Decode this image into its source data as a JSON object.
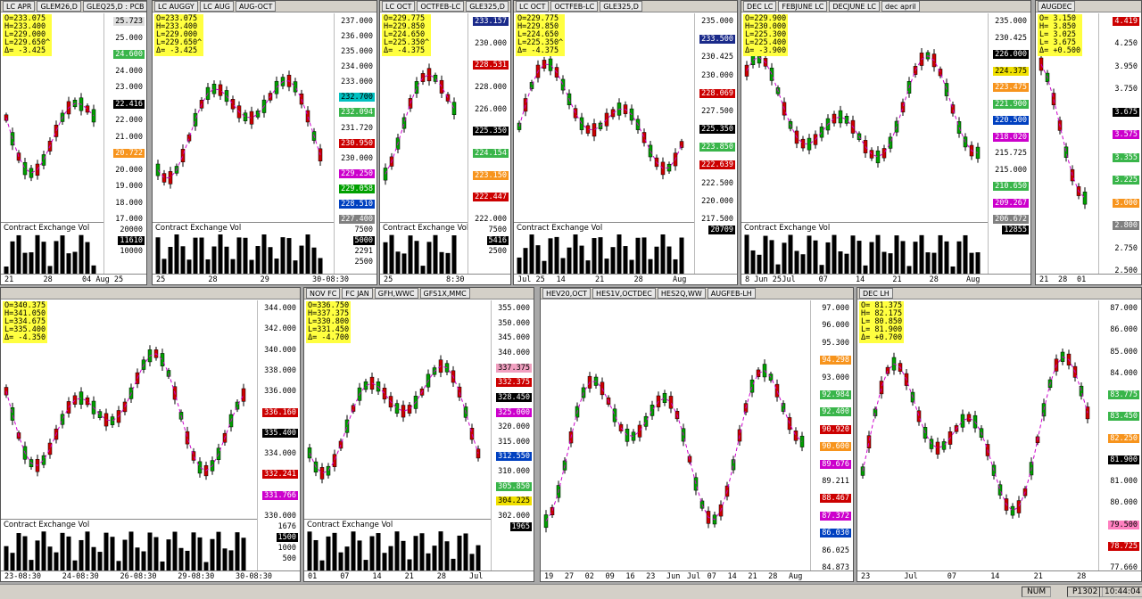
{
  "panels": [
    {
      "tabs": [
        "LC APR",
        "GLEM26,D",
        "GLEQ25,D : PCB"
      ],
      "ohlc": [
        "O=233.075",
        "H=233.400",
        "L=229.000",
        "L=229.650^",
        "Δ= -3.425"
      ],
      "axis": [
        {
          "text": "25.723",
          "bg": "#dddddd"
        },
        {
          "text": "25.000"
        },
        {
          "text": "24.600",
          "bg": "#39b54a"
        },
        {
          "text": "24.000"
        },
        {
          "text": "23.000"
        },
        {
          "text": "22.416",
          "bg": "#000000"
        },
        {
          "text": "22.000"
        },
        {
          "text": "21.000"
        },
        {
          "text": "20.722",
          "bg": "#f7941d"
        },
        {
          "text": "20.000"
        },
        {
          "text": "19.000"
        },
        {
          "text": "18.000"
        },
        {
          "text": "17.000"
        }
      ],
      "vol_axis": [
        "20000",
        "11610",
        "10000"
      ],
      "vol_label": "Contract Exchange Vol",
      "dates": [
        "21",
        "28",
        "04 Aug 25"
      ]
    },
    {
      "tabs": [
        "LC AUGGY",
        "LC AUG",
        "AUG-OCT"
      ],
      "ohlc": [
        "O=233.075",
        "H=233.400",
        "L=229.000",
        "L=229.650^",
        "Δ= -3.425"
      ],
      "axis": [
        {
          "text": "237.000"
        },
        {
          "text": "236.000"
        },
        {
          "text": "235.000"
        },
        {
          "text": "234.000"
        },
        {
          "text": "233.000"
        },
        {
          "text": "232.700",
          "bg": "#00c0c0"
        },
        {
          "text": "232.094",
          "bg": "#39b54a"
        },
        {
          "text": "231.720"
        },
        {
          "text": "230.950",
          "bg": "#cc0000"
        },
        {
          "text": "230.000"
        },
        {
          "text": "229.250",
          "bg": "#cc00cc"
        },
        {
          "text": "229.058",
          "bg": "#00a000"
        },
        {
          "text": "228.510",
          "bg": "#0040c0"
        },
        {
          "text": "227.400",
          "bg": "#808080"
        }
      ],
      "vol_axis": [
        "7500",
        "5000",
        "2291",
        "2500"
      ],
      "vol_label": "Contract Exchange Vol",
      "dates": [
        "25",
        "28",
        "29",
        "30-08:30"
      ]
    },
    {
      "tabs": [
        "LC OCT",
        "OCTFEB-LC",
        "GLE325,D"
      ],
      "ohlc": [
        "O=229.775",
        "H=229.850",
        "L=224.650",
        "L=225.350^",
        "Δ= -4.375"
      ],
      "axis": [
        {
          "text": "233.157",
          "bg": "#1a2a8a"
        },
        {
          "text": "230.000"
        },
        {
          "text": "228.531",
          "bg": "#cc0000"
        },
        {
          "text": "228.000"
        },
        {
          "text": "226.000"
        },
        {
          "text": "225.350",
          "bg": "#000000"
        },
        {
          "text": "224.154",
          "bg": "#39b54a"
        },
        {
          "text": "223.150",
          "bg": "#f7941d"
        },
        {
          "text": "222.447",
          "bg": "#cc0000"
        },
        {
          "text": "222.000"
        }
      ],
      "vol_axis": [
        "7500",
        "5416",
        "2500"
      ],
      "vol_label": "Contract Exchange Vol",
      "dates": [
        "25",
        "8:30"
      ]
    },
    {
      "tabs": [
        "LC OCT",
        "OCTFEB-LC",
        "GLE325,D"
      ],
      "ohlc": [
        "O=229.775",
        "H=229.850",
        "L=224.650",
        "L=225.350^",
        "Δ= -4.375"
      ],
      "axis": [
        {
          "text": "235.000"
        },
        {
          "text": "233.500",
          "bg": "#1a2a8a"
        },
        {
          "text": "230.425"
        },
        {
          "text": "230.000"
        },
        {
          "text": "228.069",
          "bg": "#cc0000"
        },
        {
          "text": "227.500"
        },
        {
          "text": "225.350",
          "bg": "#000000"
        },
        {
          "text": "223.850",
          "bg": "#39b54a"
        },
        {
          "text": "222.639",
          "bg": "#cc0000"
        },
        {
          "text": "222.500"
        },
        {
          "text": "220.000"
        },
        {
          "text": "217.500"
        }
      ],
      "vol_axis": [
        "20709"
      ],
      "vol_label": "Contract Exchange Vol",
      "dates": [
        "Jul 25",
        "14",
        "21",
        "28",
        "Aug"
      ]
    },
    {
      "tabs": [
        "DEC LC",
        "FEBJUNE LC",
        "DECJUNE LC",
        "dec april"
      ],
      "ohlc": [
        "O=229.900",
        "H=230.000",
        "L=225.300",
        "L=225.400",
        "Δ= -3.900"
      ],
      "axis": [
        {
          "text": "235.000"
        },
        {
          "text": "230.425"
        },
        {
          "text": "226.000",
          "bg": "#000000"
        },
        {
          "text": "224.375",
          "bg": "#f0e000"
        },
        {
          "text": "223.475",
          "bg": "#f7941d"
        },
        {
          "text": "221.900",
          "bg": "#39b54a"
        },
        {
          "text": "220.500",
          "bg": "#0040c0"
        },
        {
          "text": "218.020",
          "bg": "#cc00cc"
        },
        {
          "text": "215.725"
        },
        {
          "text": "215.000"
        },
        {
          "text": "210.650",
          "bg": "#39b54a"
        },
        {
          "text": "209.267",
          "bg": "#cc00cc"
        },
        {
          "text": "206.672",
          "bg": "#808080"
        }
      ],
      "vol_axis": [
        "12855"
      ],
      "vol_label": "Contract Exchange Vol",
      "dates": [
        "8 Jun 25",
        "Jul",
        "07",
        "14",
        "21",
        "28",
        "Aug"
      ]
    },
    {
      "tabs": [
        "AUGDEC"
      ],
      "ohlc": [
        "O= 3.150",
        "H= 3.850",
        "L= 3.025",
        "L= 3.675",
        "Δ= +0.500"
      ],
      "axis": [
        {
          "text": "4.419",
          "bg": "#cc0000"
        },
        {
          "text": "4.250"
        },
        {
          "text": "3.950"
        },
        {
          "text": "3.750"
        },
        {
          "text": "3.675",
          "bg": "#000000"
        },
        {
          "text": "3.575",
          "bg": "#cc00cc"
        },
        {
          "text": "3.355",
          "bg": "#39b54a"
        },
        {
          "text": "3.225",
          "bg": "#39b54a"
        },
        {
          "text": "3.000",
          "bg": "#f7941d"
        },
        {
          "text": "2.800",
          "bg": "#808080"
        },
        {
          "text": "2.750"
        },
        {
          "text": "2.500"
        }
      ],
      "vol_axis": [],
      "vol_label": "",
      "dates": [
        "21",
        "28",
        "01"
      ]
    },
    {
      "tabs": [],
      "ohlc": [
        "O=340.375",
        "H=341.050",
        "L=334.675",
        "L=335.400",
        "Δ= -4.350"
      ],
      "axis": [
        {
          "text": "344.000"
        },
        {
          "text": "342.000"
        },
        {
          "text": "340.000"
        },
        {
          "text": "338.000"
        },
        {
          "text": "336.000"
        },
        {
          "text": "336.160",
          "bg": "#cc0000"
        },
        {
          "text": "335.400",
          "bg": "#000000"
        },
        {
          "text": "334.000"
        },
        {
          "text": "332.241",
          "bg": "#cc0000"
        },
        {
          "text": "331.766",
          "bg": "#cc00cc"
        },
        {
          "text": "330.000"
        }
      ],
      "vol_axis": [
        "1676",
        "1500",
        "1000",
        "500"
      ],
      "vol_label": "Contract Exchange Vol",
      "dates": [
        "23-08:30",
        "24-08:30",
        "26-08:30",
        "29-08:30",
        "30-08:30"
      ]
    },
    {
      "tabs": [
        "NOV FC",
        "FC JAN",
        "GFH,WWC",
        "GFS1X,MMC"
      ],
      "ohlc": [
        "O=336.750",
        "H=337.375",
        "L=330.800",
        "L=331.450",
        "Δ= -4.700"
      ],
      "axis": [
        {
          "text": "355.000"
        },
        {
          "text": "350.000"
        },
        {
          "text": "345.000"
        },
        {
          "text": "340.000"
        },
        {
          "text": "337.375",
          "bg": "#f0a0c0"
        },
        {
          "text": "332.375",
          "bg": "#cc0000"
        },
        {
          "text": "328.450",
          "bg": "#000000"
        },
        {
          "text": "325.000",
          "bg": "#cc00cc"
        },
        {
          "text": "320.000"
        },
        {
          "text": "315.000"
        },
        {
          "text": "312.550",
          "bg": "#0040c0"
        },
        {
          "text": "310.000"
        },
        {
          "text": "305.850",
          "bg": "#39b54a"
        },
        {
          "text": "304.225",
          "bg": "#f0e000"
        },
        {
          "text": "302.000"
        }
      ],
      "vol_axis": [
        "1965"
      ],
      "vol_label": "Contract Exchange Vol",
      "dates": [
        "01",
        "07",
        "14",
        "21",
        "28",
        "Jul"
      ]
    },
    {
      "tabs": [
        "HEV20,OCT",
        "HES1V,OCTDEC",
        "HES2Q,WW",
        "AUGFEB-LH"
      ],
      "ohlc": [],
      "axis": [
        {
          "text": "97.000"
        },
        {
          "text": "96.000"
        },
        {
          "text": "95.300"
        },
        {
          "text": "94.298",
          "bg": "#f7941d"
        },
        {
          "text": "93.000"
        },
        {
          "text": "92.984",
          "bg": "#39b54a"
        },
        {
          "text": "92.400",
          "bg": "#39b54a"
        },
        {
          "text": "90.920",
          "bg": "#cc0000"
        },
        {
          "text": "90.600",
          "bg": "#f7941d"
        },
        {
          "text": "89.676",
          "bg": "#cc00cc"
        },
        {
          "text": "89.211"
        },
        {
          "text": "88.467",
          "bg": "#cc0000"
        },
        {
          "text": "87.372",
          "bg": "#cc00cc"
        },
        {
          "text": "86.030",
          "bg": "#0040c0"
        },
        {
          "text": "86.025"
        },
        {
          "text": "84.873"
        }
      ],
      "vol_axis": [],
      "vol_label": "",
      "dates": [
        "19",
        "27",
        "02",
        "09",
        "16",
        "23",
        "Jun",
        "Jul",
        "07",
        "14",
        "21",
        "28",
        "Aug"
      ]
    },
    {
      "tabs": [
        "DEC LH"
      ],
      "ohlc": [
        "O= 81.375",
        "H= 82.175",
        "L= 80.850",
        "L= 81.900",
        "Δ= +0.700"
      ],
      "axis": [
        {
          "text": "87.000"
        },
        {
          "text": "86.000"
        },
        {
          "text": "85.000"
        },
        {
          "text": "84.000"
        },
        {
          "text": "83.775",
          "bg": "#39b54a"
        },
        {
          "text": "83.450",
          "bg": "#39b54a"
        },
        {
          "text": "82.250",
          "bg": "#f7941d"
        },
        {
          "text": "81.900",
          "bg": "#000000"
        },
        {
          "text": "81.000"
        },
        {
          "text": "80.000"
        },
        {
          "text": "79.500",
          "bg": "#ff80c0"
        },
        {
          "text": "78.725",
          "bg": "#cc0000"
        },
        {
          "text": "77.660"
        }
      ],
      "vol_axis": [],
      "vol_label": "",
      "dates": [
        "23",
        "Jul",
        "07",
        "14",
        "21",
        "28"
      ]
    }
  ],
  "status": [
    "NUM",
    "P1302",
    "10:44:04"
  ]
}
